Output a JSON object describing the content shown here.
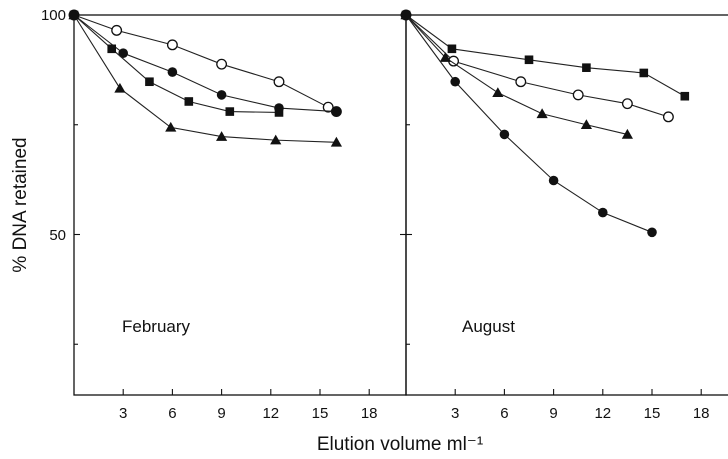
{
  "chart_data": [
    {
      "type": "line",
      "panel_label": "February",
      "xlabel": "Elution volume ml⁻¹",
      "ylabel": "% DNA retained",
      "x_ticks": [
        3,
        6,
        9,
        12,
        15,
        18
      ],
      "y_ticks": [
        50,
        100
      ],
      "xlim": [
        0,
        19
      ],
      "ylim": [
        0,
        100
      ],
      "series": [
        {
          "marker": "open-circle",
          "points": [
            [
              0,
              100
            ],
            [
              2.6,
              96.5
            ],
            [
              6.0,
              93.2
            ],
            [
              9.0,
              88.8
            ],
            [
              12.5,
              84.8
            ],
            [
              15.5,
              79.0
            ],
            [
              16.0,
              78.0
            ]
          ]
        },
        {
          "marker": "filled-circle",
          "points": [
            [
              0,
              100
            ],
            [
              3.0,
              91.3
            ],
            [
              6.0,
              87.0
            ],
            [
              9.0,
              81.8
            ],
            [
              12.5,
              78.8
            ],
            [
              16.0,
              78.0
            ]
          ]
        },
        {
          "marker": "filled-square",
          "points": [
            [
              0,
              100
            ],
            [
              2.3,
              92.3
            ],
            [
              4.6,
              84.8
            ],
            [
              7.0,
              80.3
            ],
            [
              9.5,
              78.0
            ],
            [
              12.5,
              77.8
            ]
          ]
        },
        {
          "marker": "filled-triangle",
          "points": [
            [
              0,
              100
            ],
            [
              2.8,
              83.3
            ],
            [
              5.9,
              74.4
            ],
            [
              9.0,
              72.3
            ],
            [
              12.3,
              71.5
            ],
            [
              16.0,
              71.0
            ]
          ]
        }
      ]
    },
    {
      "type": "line",
      "panel_label": "August",
      "x_ticks": [
        3,
        6,
        9,
        12,
        15,
        18
      ],
      "xlim": [
        0,
        19
      ],
      "ylim": [
        0,
        100
      ],
      "series": [
        {
          "marker": "filled-square",
          "points": [
            [
              0,
              100
            ],
            [
              2.8,
              92.3
            ],
            [
              7.5,
              89.8
            ],
            [
              11.0,
              88.0
            ],
            [
              14.5,
              86.8
            ],
            [
              17.0,
              81.5
            ]
          ]
        },
        {
          "marker": "open-circle",
          "points": [
            [
              0,
              100
            ],
            [
              2.9,
              89.5
            ],
            [
              7.0,
              84.8
            ],
            [
              10.5,
              81.8
            ],
            [
              13.5,
              79.8
            ],
            [
              16.0,
              76.8
            ]
          ]
        },
        {
          "marker": "filled-triangle",
          "points": [
            [
              0,
              100
            ],
            [
              2.4,
              90.3
            ],
            [
              5.6,
              82.3
            ],
            [
              8.3,
              77.5
            ],
            [
              11.0,
              75.0
            ],
            [
              13.5,
              72.8
            ]
          ]
        },
        {
          "marker": "filled-circle",
          "points": [
            [
              0,
              100
            ],
            [
              3.0,
              84.8
            ],
            [
              6.0,
              72.8
            ],
            [
              9.0,
              62.3
            ],
            [
              12.0,
              55.0
            ],
            [
              15.0,
              50.5
            ]
          ]
        }
      ]
    }
  ]
}
